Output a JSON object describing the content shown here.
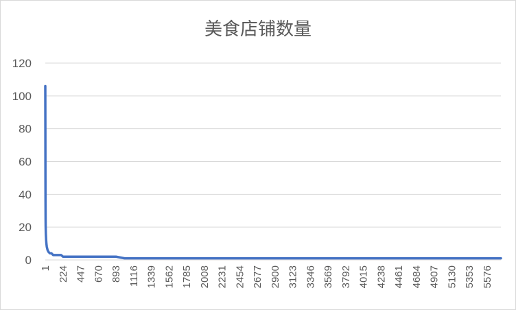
{
  "chart_data": {
    "type": "line",
    "title": "美食店铺数量",
    "xlabel": "",
    "ylabel": "",
    "ylim": [
      0,
      120
    ],
    "y_ticks": [
      0,
      20,
      40,
      60,
      80,
      100,
      120
    ],
    "x_range": [
      1,
      5750
    ],
    "x_tick_labels": [
      "1",
      "224",
      "447",
      "670",
      "893",
      "1116",
      "1339",
      "1562",
      "1785",
      "2008",
      "2231",
      "2454",
      "2677",
      "2900",
      "3123",
      "3346",
      "3569",
      "3792",
      "4015",
      "4238",
      "4461",
      "4684",
      "4907",
      "5130",
      "5353",
      "5576"
    ],
    "grid": true,
    "legend": "none",
    "series": [
      {
        "color": "#4472c4",
        "x": [
          1,
          2,
          3,
          4,
          5,
          6,
          8,
          10,
          12,
          15,
          20,
          30,
          40,
          60,
          80,
          100,
          150,
          200,
          224,
          300,
          447,
          670,
          893,
          1000,
          1116,
          2000,
          3000,
          4000,
          5000,
          5750
        ],
        "y": [
          106,
          80,
          50,
          35,
          25,
          20,
          16,
          14,
          12,
          10,
          8,
          6,
          5,
          4,
          4,
          3,
          3,
          3,
          2,
          2,
          2,
          2,
          2,
          1,
          1,
          1,
          1,
          1,
          1,
          1
        ]
      }
    ]
  }
}
